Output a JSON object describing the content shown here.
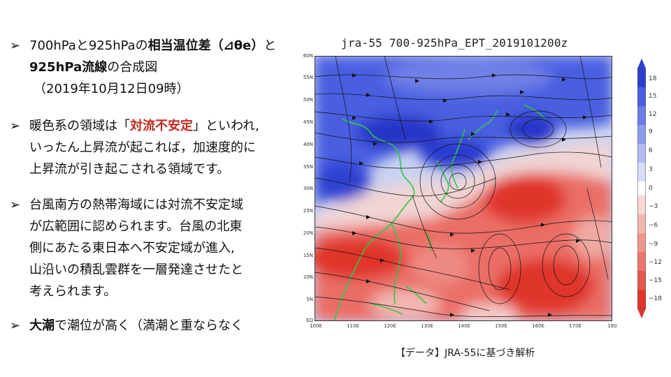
{
  "bullets": {
    "b1": {
      "arrow": "➢",
      "line1_a": "700hPaと925hPaの",
      "line1_bold": "相当温位差（⊿θe）",
      "line1_c": "と",
      "line2_bold": "925hPa流線",
      "line2_c": "の合成図",
      "line3": "（2019年10月12日09時）"
    },
    "b2": {
      "arrow": "➢",
      "line1_a": "暖色系の領域は「",
      "line1_red": "対流不安定",
      "line1_c": "」といわれ,",
      "line2": "いったん上昇流が起これば，加速度的に",
      "line3": "上昇流が引き起こされる領域です。"
    },
    "b3": {
      "arrow": "➢",
      "line1": "台風南方の熱帯海域には対流不安定域",
      "line2": "が広範囲に認められます。台風の北東",
      "line3": "側にあたる東日本へ不安定域が進入,",
      "line4": "山沿いの積乱雲群を一層発達させたと",
      "line5": "考えられます。"
    },
    "b4": {
      "arrow": "➢",
      "line1_bold": "大潮",
      "line1_c": "で潮位が高く（満潮と重ならなく"
    }
  },
  "map": {
    "title": "jra-55  700-925hPa_EPT_2019101200z",
    "lat_labels": [
      "60N",
      "55N",
      "50N",
      "45N",
      "40N",
      "35N",
      "30N",
      "25N",
      "20N",
      "15N",
      "10N",
      "5N",
      "EQ"
    ],
    "lon_labels": [
      "100E",
      "110E",
      "120E",
      "130E",
      "140E",
      "150E",
      "160E",
      "170E",
      "180"
    ],
    "colorbar_labels": [
      "18",
      "15",
      "12",
      "9",
      "6",
      "3",
      "0",
      "−3",
      "−6",
      "−9",
      "−12",
      "−15",
      "−18"
    ],
    "colors": {
      "stable": "#2a3fd0",
      "unstable": "#e0342a",
      "coast": "#31c64a",
      "streamline": "#111111"
    },
    "caption": "【データ】JRA-55に基づき解析"
  }
}
